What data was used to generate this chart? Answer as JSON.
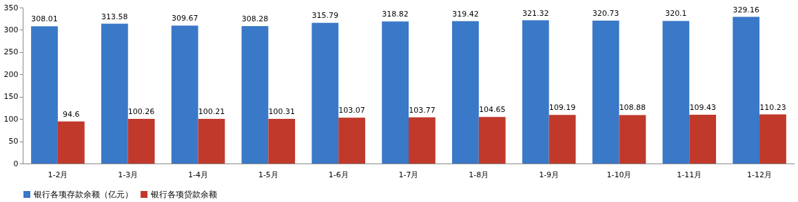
{
  "chart_data": {
    "type": "bar",
    "categories": [
      "1-2月",
      "1-3月",
      "1-4月",
      "1-5月",
      "1-6月",
      "1-7月",
      "1-8月",
      "1-9月",
      "1-10月",
      "1-11月",
      "1-12月"
    ],
    "series": [
      {
        "name": "银行各项存款余额（亿元）",
        "color": "#3a78c8",
        "values": [
          308.01,
          313.58,
          309.67,
          308.28,
          315.79,
          318.82,
          319.42,
          321.32,
          320.73,
          320.1,
          329.16
        ]
      },
      {
        "name": "银行各项贷款余额",
        "color": "#c0392b",
        "values": [
          94.6,
          100.26,
          100.21,
          100.31,
          103.07,
          103.77,
          104.65,
          109.19,
          108.88,
          109.43,
          110.23
        ]
      }
    ],
    "ylim": [
      0,
      350
    ],
    "yticks": [
      0,
      50,
      100,
      150,
      200,
      250,
      300,
      350
    ],
    "grid": false,
    "legend": "bottom",
    "data_labels": true
  }
}
